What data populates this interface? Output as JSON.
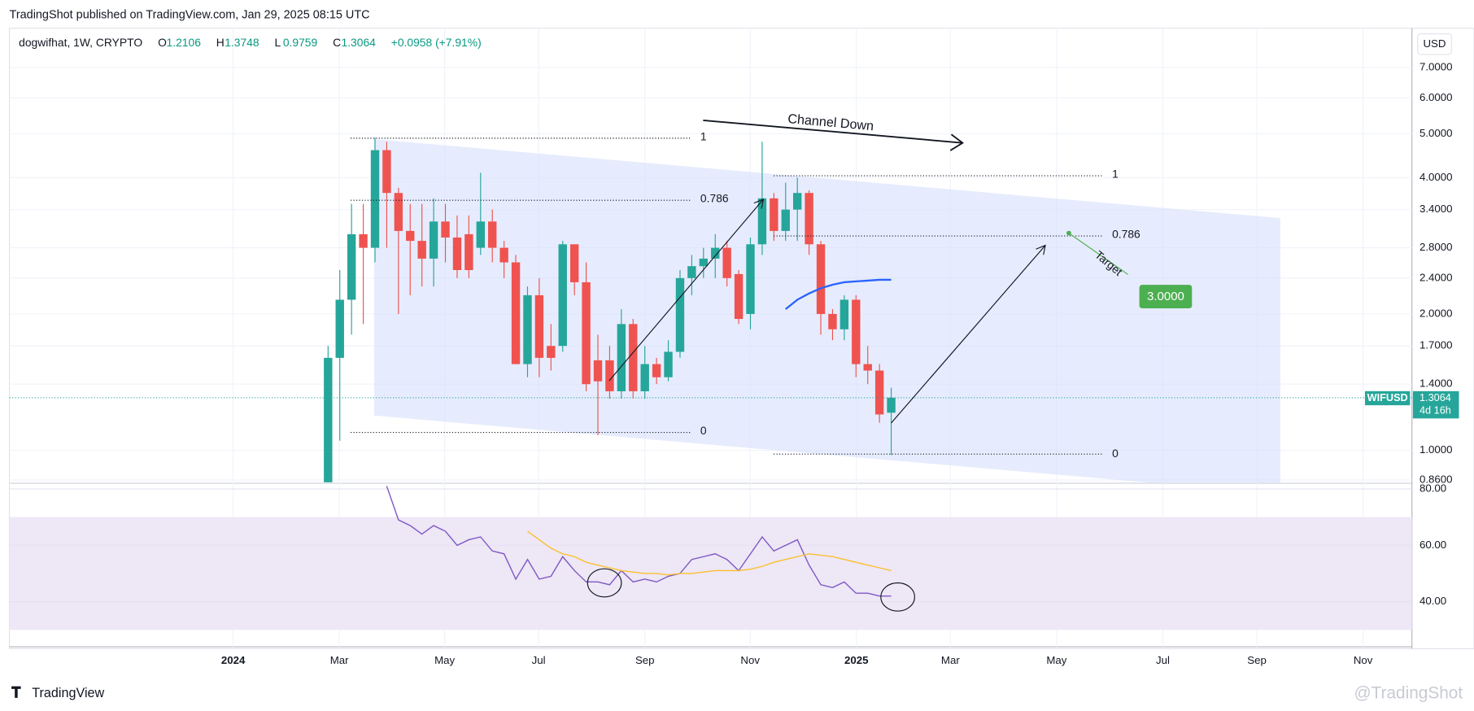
{
  "header": {
    "published": "TradingShot published on TradingView.com, Jan 29, 2025 08:15 UTC",
    "symbol": "dogwifhat, 1W, CRYPTO",
    "ohlc": [
      {
        "label": "O",
        "value": "1.2106"
      },
      {
        "label": "H",
        "value": "1.3748"
      },
      {
        "label": "L",
        "value": "0.9759"
      },
      {
        "label": "C",
        "value": "1.3064"
      }
    ],
    "change": "+0.0958 (+7.91%)"
  },
  "currency": "USD",
  "price_tag": {
    "symbol": "WIFUSD",
    "price": "1.3064",
    "countdown": "4d 16h"
  },
  "footer": {
    "brand": "TradingView",
    "watermark": "@TradingShot"
  },
  "annotations": {
    "channel": "Channel Down",
    "target": "Target",
    "target_price": "3.0000",
    "fib_left": [
      "1",
      "0.786",
      "0"
    ],
    "fib_right": [
      "1",
      "0.786",
      "0"
    ]
  },
  "chart_data": [
    {
      "type": "candlestick",
      "log_scale": true,
      "grid": true,
      "up_color": "#26a69a",
      "down_color": "#ef5350",
      "x_labels": [
        "2024",
        "Mar",
        "May",
        "Jul",
        "Sep",
        "Nov",
        "2025",
        "Mar",
        "May",
        "Jul",
        "Sep",
        "Nov"
      ],
      "open": [
        0.85,
        1.6,
        2.15,
        3.0,
        2.8,
        4.6,
        3.7,
        3.05,
        2.9,
        2.65,
        3.2,
        2.95,
        3.0,
        2.8,
        3.2,
        2.8,
        2.6,
        1.55,
        2.2,
        1.7,
        1.7,
        2.85,
        2.35,
        1.58,
        1.58,
        1.35,
        1.9,
        1.35,
        1.55,
        1.45,
        1.65,
        2.4,
        2.55,
        2.65,
        2.8,
        2.45,
        2.0,
        2.85,
        3.6,
        3.05,
        3.4,
        3.7,
        2.85,
        2.0,
        1.85,
        2.15,
        1.55,
        1.5,
        1.2106
      ],
      "high": [
        1.7,
        2.5,
        3.5,
        3.5,
        4.9,
        4.8,
        3.8,
        3.5,
        3.5,
        3.6,
        3.5,
        3.3,
        3.3,
        4.1,
        3.4,
        2.9,
        2.7,
        2.3,
        2.4,
        1.9,
        2.9,
        2.85,
        2.6,
        1.8,
        1.7,
        2.05,
        1.95,
        1.7,
        1.6,
        1.75,
        2.5,
        2.7,
        2.8,
        3.0,
        2.9,
        2.5,
        2.95,
        4.8,
        3.7,
        3.9,
        4.0,
        3.75,
        2.9,
        2.05,
        2.2,
        2.2,
        1.7,
        1.55,
        1.3748
      ],
      "low": [
        0.85,
        1.05,
        1.8,
        1.9,
        2.6,
        2.8,
        2.0,
        2.2,
        2.3,
        2.3,
        2.6,
        2.4,
        2.4,
        2.7,
        2.6,
        2.4,
        1.55,
        1.45,
        1.45,
        1.5,
        1.65,
        2.2,
        1.35,
        1.08,
        1.3,
        1.3,
        1.3,
        1.3,
        1.4,
        1.42,
        1.6,
        2.2,
        2.4,
        2.4,
        2.3,
        1.9,
        1.85,
        2.7,
        2.9,
        2.9,
        2.9,
        2.7,
        1.8,
        1.75,
        1.75,
        1.45,
        1.4,
        1.15,
        0.9759
      ],
      "close": [
        1.6,
        2.15,
        3.0,
        2.8,
        4.6,
        3.7,
        3.05,
        2.9,
        2.65,
        3.2,
        2.95,
        2.5,
        2.5,
        3.2,
        2.8,
        2.6,
        1.55,
        2.2,
        1.6,
        1.6,
        2.85,
        2.35,
        1.4,
        1.42,
        1.35,
        1.9,
        1.35,
        1.55,
        1.45,
        1.65,
        2.4,
        2.55,
        2.65,
        2.8,
        2.4,
        1.95,
        2.85,
        3.6,
        3.05,
        3.4,
        3.7,
        2.85,
        2.0,
        1.85,
        2.15,
        1.55,
        1.5,
        1.2,
        1.3064
      ],
      "last_price": 1.3064,
      "last_color": "#26a69a",
      "series": [
        {
          "color": "#2962ff",
          "values": [
            null,
            null,
            null,
            null,
            null,
            null,
            null,
            null,
            null,
            null,
            null,
            null,
            null,
            null,
            null,
            null,
            null,
            null,
            null,
            null,
            null,
            null,
            null,
            null,
            null,
            null,
            null,
            null,
            null,
            null,
            null,
            null,
            null,
            null,
            null,
            null,
            null,
            null,
            null,
            2.05,
            2.15,
            2.22,
            2.28,
            2.32,
            2.35,
            2.36,
            2.37,
            2.38,
            2.38
          ]
        }
      ],
      "ylim": [
        0.85,
        8.55
      ],
      "yticks": [
        {
          "value": 0.86,
          "label": "0.8600"
        },
        {
          "value": 1.0,
          "label": "1.0000"
        },
        {
          "value": 1.4,
          "label": "1.4000"
        },
        {
          "value": 1.7,
          "label": "1.7000"
        },
        {
          "value": 2.0,
          "label": "2.0000"
        },
        {
          "value": 2.4,
          "label": "2.4000"
        },
        {
          "value": 2.8,
          "label": "2.8000"
        },
        {
          "value": 3.4,
          "label": "3.4000"
        },
        {
          "value": 4.0,
          "label": "4.0000"
        },
        {
          "value": 5.0,
          "label": "5.0000"
        },
        {
          "value": 6.0,
          "label": "6.0000"
        },
        {
          "value": 7.0,
          "label": "7.0000"
        }
      ]
    },
    {
      "type": "line",
      "grid": true,
      "band": [
        30,
        70
      ],
      "band_color": "#ede7f6",
      "series": [
        {
          "color": "#7e57c2",
          "values": [
            null,
            null,
            null,
            null,
            null,
            81,
            69,
            67,
            64,
            67,
            65,
            60,
            62,
            63,
            58,
            57,
            48,
            55,
            48,
            49,
            56,
            51,
            47,
            47,
            46,
            51,
            47,
            48,
            47,
            49,
            50,
            55,
            56,
            57,
            55,
            51,
            57,
            63,
            58,
            60,
            62,
            53,
            46,
            45,
            47,
            43,
            43,
            42,
            42
          ]
        },
        {
          "color": "#fbc02d",
          "values": [
            null,
            null,
            null,
            null,
            null,
            null,
            null,
            null,
            null,
            null,
            null,
            null,
            null,
            null,
            null,
            null,
            null,
            65,
            62,
            59,
            57,
            56,
            54,
            53,
            52,
            51,
            50.5,
            50,
            50,
            49.5,
            50,
            50,
            50.5,
            51,
            51,
            51,
            51.5,
            52.5,
            54,
            55,
            56,
            57,
            56.5,
            56,
            55,
            54,
            53,
            52,
            51
          ]
        }
      ],
      "ylim": [
        24,
        81.7
      ],
      "yticks": [
        {
          "value": 40,
          "label": "40.00"
        },
        {
          "value": 60,
          "label": "60.00"
        },
        {
          "value": 80,
          "label": "80.00"
        }
      ]
    }
  ]
}
